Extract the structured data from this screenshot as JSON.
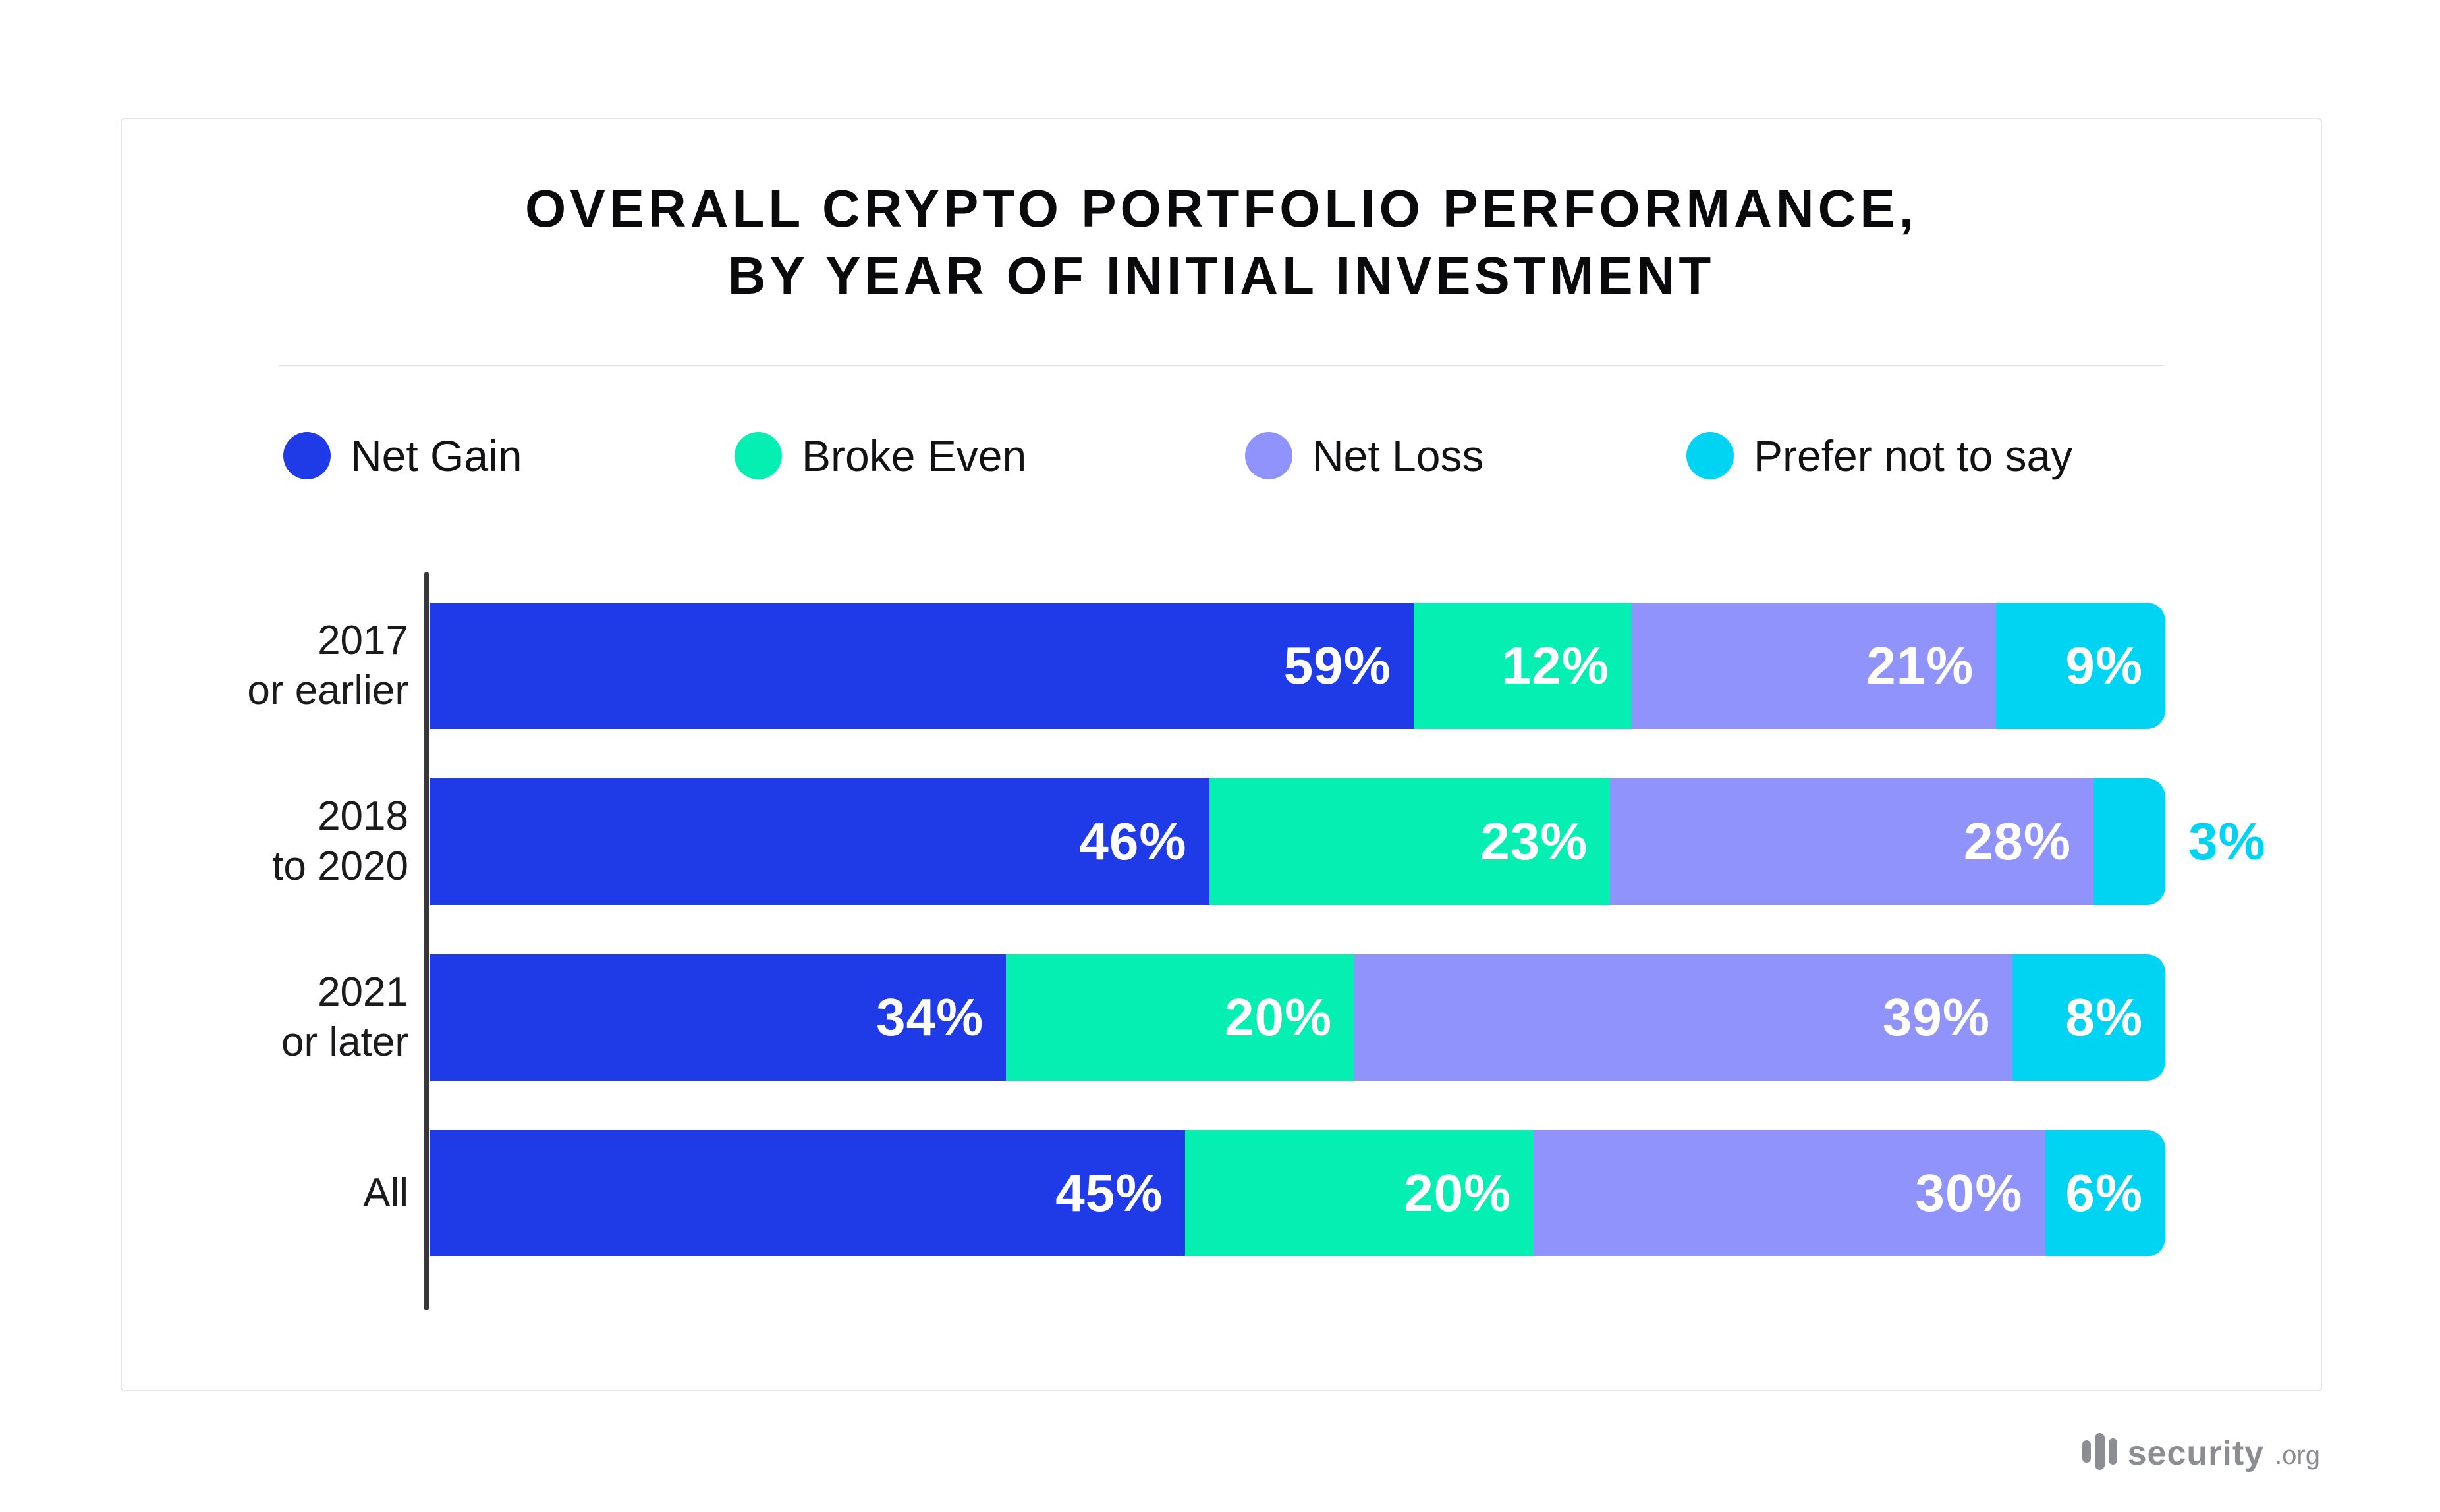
{
  "title": {
    "line1": "OVERALL CRYPTO PORTFOLIO PERFORMANCE,",
    "line2": "BY YEAR OF INITIAL INVESTMENT"
  },
  "legend": [
    {
      "label": "Net Gain",
      "color": "#1F3BE8"
    },
    {
      "label": "Broke Even",
      "color": "#05EFB2"
    },
    {
      "label": "Net Loss",
      "color": "#8F93FB"
    },
    {
      "label": "Prefer not to say",
      "color": "#00D4F2"
    }
  ],
  "chart_data": {
    "type": "bar",
    "stacked": true,
    "orientation": "horizontal",
    "title": "Overall crypto portfolio performance, by year of initial investment",
    "categories": [
      [
        "2017",
        "or earlier"
      ],
      [
        "2018",
        "to 2020"
      ],
      [
        "2021",
        "or later"
      ],
      [
        "All"
      ]
    ],
    "series": [
      {
        "name": "Net Gain",
        "color": "#1F3BE8",
        "values": [
          59,
          46,
          34,
          45
        ]
      },
      {
        "name": "Broke Even",
        "color": "#05EFB2",
        "values": [
          12,
          23,
          20,
          20
        ]
      },
      {
        "name": "Net Loss",
        "color": "#8F93FB",
        "values": [
          21,
          28,
          39,
          30
        ]
      },
      {
        "name": "Prefer not to say",
        "color": "#00D4F2",
        "values": [
          9,
          3,
          8,
          6
        ]
      }
    ],
    "value_suffix": "%",
    "xlim": [
      0,
      100
    ],
    "grid": false,
    "legend_position": "top",
    "outside_value_labels": [
      {
        "category_index": 1,
        "series_index": 3,
        "label_color": "#00D4F2"
      }
    ]
  },
  "footer": {
    "logo_text": "security",
    "logo_suffix": ".org"
  }
}
